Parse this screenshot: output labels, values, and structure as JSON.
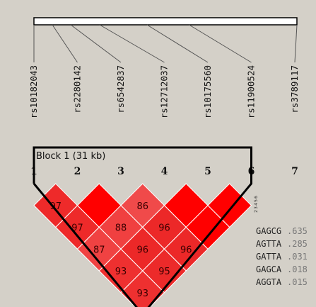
{
  "snps": [
    "rs10182043",
    "rs2280142",
    "rs6542837",
    "rs12712037",
    "rs10175560",
    "rs11900524",
    "rs3789117"
  ],
  "snp_indices": [
    "1",
    "2",
    "3",
    "4",
    "5",
    "6",
    "7"
  ],
  "block": {
    "label": "Block 1 (31 kb)",
    "snp_range": [
      1,
      6
    ]
  },
  "ld_cells": [
    {
      "pair": [
        1,
        2
      ],
      "value": "97",
      "color": "#ee2a2a"
    },
    {
      "pair": [
        2,
        3
      ],
      "value": "",
      "color": "#ff0000"
    },
    {
      "pair": [
        3,
        4
      ],
      "value": "86",
      "color": "#f04a4a"
    },
    {
      "pair": [
        4,
        5
      ],
      "value": "",
      "color": "#ff0000"
    },
    {
      "pair": [
        5,
        6
      ],
      "value": "",
      "color": "#ff0000"
    },
    {
      "pair": [
        1,
        3
      ],
      "value": "97",
      "color": "#ee2a2a"
    },
    {
      "pair": [
        2,
        4
      ],
      "value": "88",
      "color": "#f04040"
    },
    {
      "pair": [
        3,
        5
      ],
      "value": "96",
      "color": "#ec2828"
    },
    {
      "pair": [
        4,
        6
      ],
      "value": "",
      "color": "#ff0000"
    },
    {
      "pair": [
        1,
        4
      ],
      "value": "87",
      "color": "#f04242"
    },
    {
      "pair": [
        2,
        5
      ],
      "value": "96",
      "color": "#ec2828"
    },
    {
      "pair": [
        3,
        6
      ],
      "value": "96",
      "color": "#ec2828"
    },
    {
      "pair": [
        1,
        5
      ],
      "value": "93",
      "color": "#ee3030"
    },
    {
      "pair": [
        2,
        6
      ],
      "value": "95",
      "color": "#ec2a2a"
    },
    {
      "pair": [
        1,
        6
      ],
      "value": "93",
      "color": "#ee3030"
    }
  ],
  "haplotype_ticks": [
    "2",
    "3",
    "4",
    "5",
    "6"
  ],
  "haplotypes": [
    {
      "seq": "GAGCG",
      "freq": ".635"
    },
    {
      "seq": "AGTTA",
      "freq": ".285"
    },
    {
      "seq": "GATTA",
      "freq": ".031"
    },
    {
      "seq": "GAGCA",
      "freq": ".018"
    },
    {
      "seq": "AGGTA",
      "freq": ".015"
    }
  ]
}
